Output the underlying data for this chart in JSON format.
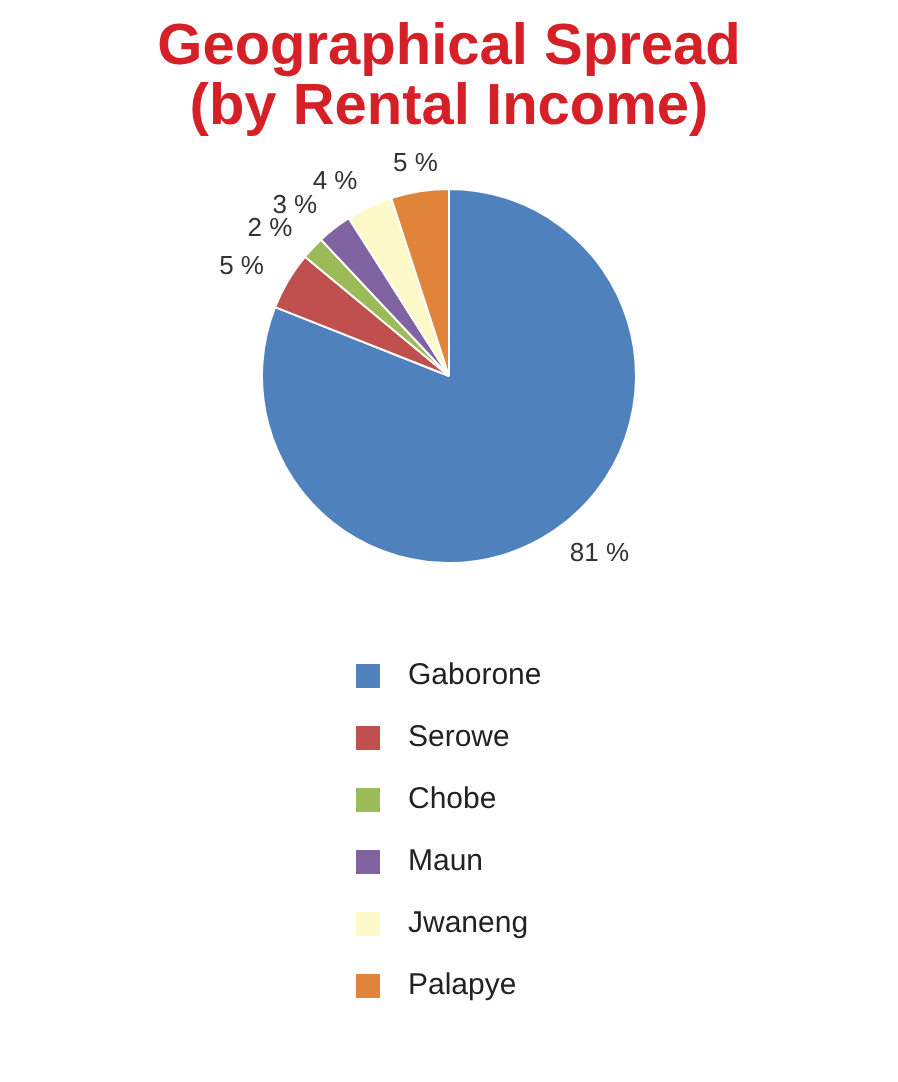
{
  "chart_data": {
    "type": "pie",
    "title": "Geographical Spread (by Rental Income)",
    "categories": [
      "Gaborone",
      "Serowe",
      "Chobe",
      "Maun",
      "Jwaneng",
      "Palapye"
    ],
    "values": [
      81,
      5,
      2,
      3,
      4,
      5
    ],
    "value_labels": [
      "81 %",
      "5 %",
      "2 %",
      "3 %",
      "4 %",
      "5 %"
    ],
    "colors": [
      "#4f81bd",
      "#c0504d",
      "#9bbb59",
      "#8064a2",
      "#fdf9c8",
      "#e0843a"
    ],
    "legend": "bottom"
  }
}
